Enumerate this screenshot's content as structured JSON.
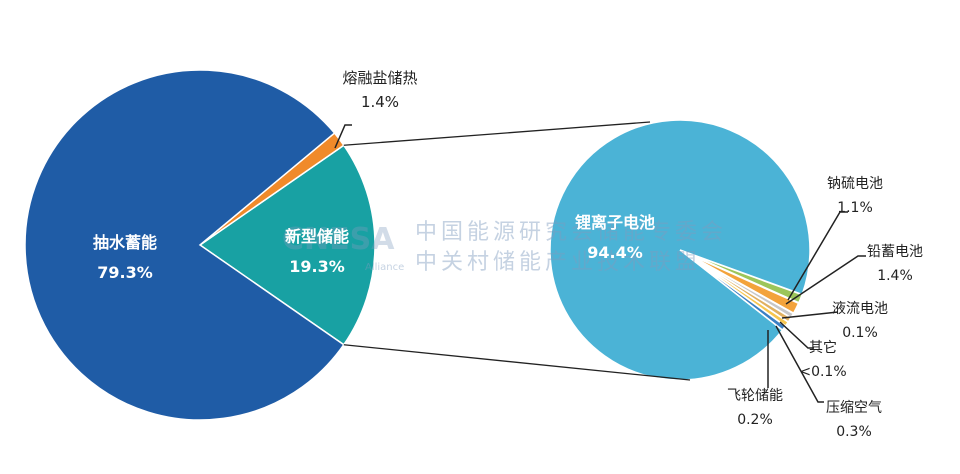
{
  "chart_data": [
    {
      "type": "pie",
      "slices": [
        {
          "label": "抽水蓄能",
          "value": 79.3,
          "display": "79.3%",
          "color": "#1f5ca6"
        },
        {
          "label": "新型储能",
          "value": 19.3,
          "display": "19.3%",
          "color": "#18a1a3"
        },
        {
          "label": "熔融盐储热",
          "value": 1.4,
          "display": "1.4%",
          "color": "#f08a2a"
        }
      ]
    },
    {
      "type": "pie",
      "parent": "新型储能",
      "slices": [
        {
          "label": "锂离子电池",
          "value": 94.4,
          "display": "94.4%",
          "color": "#4bb3d6"
        },
        {
          "label": "钠硫电池",
          "value": 1.1,
          "display": "1.1%",
          "color": "#9cc55a"
        },
        {
          "label": "铅蓄电池",
          "value": 1.4,
          "display": "1.4%",
          "color": "#f3a33b"
        },
        {
          "label": "液流电池",
          "value": 0.1,
          "display": "0.1%",
          "color": "#c7c7c7"
        },
        {
          "label": "其它",
          "value": 0.05,
          "display": "<0.1%",
          "color": "#e0b060"
        },
        {
          "label": "压缩空气",
          "value": 0.3,
          "display": "0.3%",
          "color": "#f7c64f"
        },
        {
          "label": "飞轮储能",
          "value": 0.2,
          "display": "0.2%",
          "color": "#3a7fc4"
        }
      ]
    }
  ],
  "watermark": {
    "logo": "CNESA",
    "line1": "中国能源研究会储能专委会",
    "line2": "中关村储能产业技术联盟",
    "sub": "Alliance"
  }
}
